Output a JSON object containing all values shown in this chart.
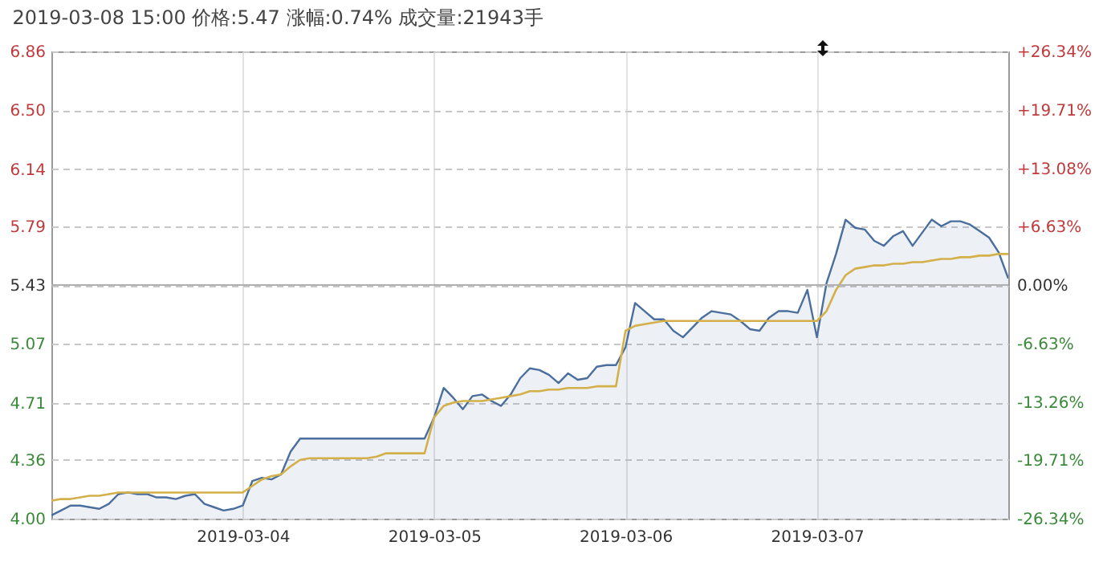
{
  "chart_data": {
    "type": "area",
    "title": "2019-03-08 15:00 价格:5.47 涨幅:0.74% 成交量:21943手",
    "categories": [
      null,
      null,
      null,
      null,
      null,
      null,
      null,
      null,
      null,
      null,
      null,
      null,
      null,
      null,
      null,
      null,
      null,
      null,
      null,
      null,
      "2019-03-04",
      null,
      null,
      null,
      null,
      null,
      null,
      null,
      null,
      null,
      null,
      null,
      null,
      null,
      null,
      null,
      null,
      null,
      null,
      null,
      "2019-03-05",
      null,
      null,
      null,
      null,
      null,
      null,
      null,
      null,
      null,
      null,
      null,
      null,
      null,
      null,
      null,
      null,
      null,
      null,
      null,
      "2019-03-06",
      null,
      null,
      null,
      null,
      null,
      null,
      null,
      null,
      null,
      null,
      null,
      null,
      null,
      null,
      null,
      null,
      null,
      null,
      null,
      "2019-03-07",
      null,
      null,
      null,
      null,
      null,
      null,
      null,
      null,
      null,
      null,
      null,
      null,
      null,
      null,
      null,
      null,
      null,
      null,
      null,
      null
    ],
    "ylim": [
      4.0,
      6.86
    ],
    "yticks": [
      {
        "value": 4,
        "label": "4.00"
      },
      4.36,
      4.71,
      5.07,
      5.43,
      5.79,
      6.14,
      {
        "value": 6.5,
        "label": "6.50"
      },
      6.86
    ],
    "y2lim": [
      -26.34,
      26.34
    ],
    "y2ticks": [
      {
        "value": -26.34,
        "label": "-26.34%"
      },
      {
        "value": -19.71,
        "label": "-19.71%"
      },
      {
        "value": -13.26,
        "label": "-13.26%"
      },
      {
        "value": -6.63,
        "label": "-6.63%"
      },
      {
        "value": 0,
        "label": "0.00%"
      },
      {
        "value": 6.63,
        "label": "+6.63%"
      },
      {
        "value": 13.08,
        "label": "+13.08%"
      },
      {
        "value": 19.71,
        "label": "+19.71%"
      },
      {
        "value": 26.34,
        "label": "+26.34%"
      }
    ],
    "grid": true,
    "ref_lines": [
      {
        "axis": "y2",
        "value": 0,
        "color": "#b0b0b0"
      }
    ],
    "series": [
      {
        "color": "#4a6f9e",
        "values": [
          4.02,
          4.05,
          4.08,
          4.08,
          4.07,
          4.06,
          4.09,
          4.15,
          4.16,
          4.15,
          4.15,
          4.13,
          4.13,
          4.12,
          4.14,
          4.15,
          4.09,
          4.07,
          4.05,
          4.06,
          4.08,
          4.23,
          4.25,
          4.24,
          4.27,
          4.41,
          4.49,
          4.49,
          4.49,
          4.49,
          4.49,
          4.49,
          4.49,
          4.49,
          4.49,
          4.49,
          4.49,
          4.49,
          4.49,
          4.49,
          4.62,
          4.8,
          4.74,
          4.67,
          4.75,
          4.76,
          4.72,
          4.69,
          4.76,
          4.86,
          4.92,
          4.91,
          4.88,
          4.83,
          4.89,
          4.85,
          4.86,
          4.93,
          4.94,
          4.94,
          5.05,
          5.32,
          5.27,
          5.22,
          5.22,
          5.15,
          5.11,
          5.17,
          5.23,
          5.27,
          5.26,
          5.25,
          5.21,
          5.16,
          5.15,
          5.23,
          5.27,
          5.27,
          5.26,
          5.4,
          5.11,
          5.44,
          5.62,
          5.83,
          5.78,
          5.77,
          5.7,
          5.67,
          5.73,
          5.76,
          5.67,
          5.75,
          5.83,
          5.79,
          5.82,
          5.82,
          5.8,
          5.76,
          5.72,
          5.63,
          5.47
        ]
      },
      {
        "type": "line",
        "color": "#d4b04a",
        "values": [
          4.11,
          4.12,
          4.12,
          4.13,
          4.14,
          4.14,
          4.15,
          4.16,
          4.16,
          4.16,
          4.16,
          4.16,
          4.16,
          4.16,
          4.16,
          4.16,
          4.16,
          4.16,
          4.16,
          4.16,
          4.16,
          4.2,
          4.24,
          4.26,
          4.27,
          4.32,
          4.36,
          4.37,
          4.37,
          4.37,
          4.37,
          4.37,
          4.37,
          4.37,
          4.38,
          4.4,
          4.4,
          4.4,
          4.4,
          4.4,
          4.62,
          4.69,
          4.71,
          4.72,
          4.72,
          4.72,
          4.73,
          4.74,
          4.75,
          4.76,
          4.78,
          4.78,
          4.79,
          4.79,
          4.8,
          4.8,
          4.8,
          4.81,
          4.81,
          4.81,
          5.15,
          5.18,
          5.19,
          5.2,
          5.21,
          5.21,
          5.21,
          5.21,
          5.21,
          5.21,
          5.21,
          5.21,
          5.21,
          5.21,
          5.21,
          5.21,
          5.21,
          5.21,
          5.21,
          5.21,
          5.21,
          5.27,
          5.4,
          5.49,
          5.53,
          5.54,
          5.55,
          5.55,
          5.56,
          5.56,
          5.57,
          5.57,
          5.58,
          5.59,
          5.59,
          5.6,
          5.6,
          5.61,
          5.61,
          5.62,
          5.62
        ]
      }
    ]
  }
}
